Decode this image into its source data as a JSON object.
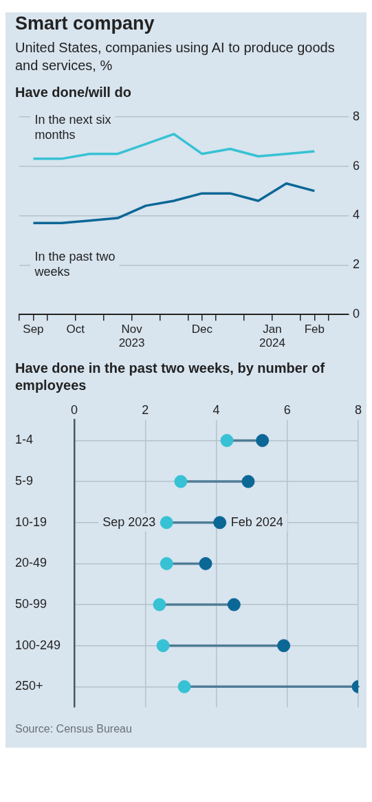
{
  "chart_data": [
    {
      "type": "other",
      "title": "Smart company",
      "subtitle": "United States, companies using AI to produce goods and services, %"
    },
    {
      "type": "line",
      "title": "Have done/will do",
      "x": [
        "2023-09-18",
        "2023-10-02",
        "2023-10-16",
        "2023-10-30",
        "2023-11-13",
        "2023-11-27",
        "2023-12-11",
        "2023-12-25",
        "2024-01-08",
        "2024-01-22",
        "2024-02-05"
      ],
      "series": [
        {
          "name": "In the next six months",
          "color": "#36c2d4",
          "values": [
            6.3,
            6.3,
            6.5,
            6.5,
            6.9,
            7.3,
            6.5,
            6.7,
            6.4,
            6.5,
            6.6
          ]
        },
        {
          "name": "In the past two weeks",
          "color": "#0b6796",
          "values": [
            3.7,
            3.7,
            3.8,
            3.9,
            4.4,
            4.6,
            4.9,
            4.9,
            4.6,
            5.3,
            5.0
          ]
        }
      ],
      "xlim": [
        "2023-09-11",
        "2024-02-22"
      ],
      "xticks": [
        {
          "value": "2023-09-11",
          "label": null
        },
        {
          "value": "2023-09-18",
          "label": "Sep"
        },
        {
          "value": "2023-09-25",
          "label": null
        },
        {
          "value": "2023-10-09",
          "label": "Oct"
        },
        {
          "value": "2023-10-23",
          "label": null
        },
        {
          "value": "2023-11-06",
          "label": "Nov\n2023"
        },
        {
          "value": "2023-11-20",
          "label": null
        },
        {
          "value": "2023-12-04",
          "label": null
        },
        {
          "value": "2023-12-11",
          "label": "Dec"
        },
        {
          "value": "2023-12-18",
          "label": null
        },
        {
          "value": "2024-01-01",
          "label": null
        },
        {
          "value": "2024-01-15",
          "label": "Jan\n2024"
        },
        {
          "value": "2024-01-29",
          "label": null
        },
        {
          "value": "2024-02-05",
          "label": "Feb"
        },
        {
          "value": "2024-02-12",
          "label": null
        }
      ],
      "ylim": [
        0,
        8
      ],
      "yticks": [
        0,
        2,
        4,
        6,
        8
      ],
      "grid": "y"
    },
    {
      "type": "scatter",
      "orientation": "horizontal",
      "title": "Have done in the past two weeks, by number of employees",
      "categories": [
        "1-4",
        "5-9",
        "10-19",
        "20-49",
        "50-99",
        "100-249",
        "250+"
      ],
      "series": [
        {
          "name": "Sep 2023",
          "color": "#36c2d4",
          "values": [
            4.3,
            3.0,
            2.6,
            2.6,
            2.4,
            2.5,
            3.1
          ]
        },
        {
          "name": "Feb 2024",
          "color": "#0b6796",
          "values": [
            5.3,
            4.9,
            4.1,
            3.7,
            4.5,
            5.9,
            8.0
          ]
        }
      ],
      "xlim": [
        0,
        8
      ],
      "xticks": [
        0,
        2,
        4,
        6,
        8
      ],
      "grid": true,
      "marker": "circle",
      "annotations": [
        "Source: Census Bureau"
      ]
    }
  ]
}
